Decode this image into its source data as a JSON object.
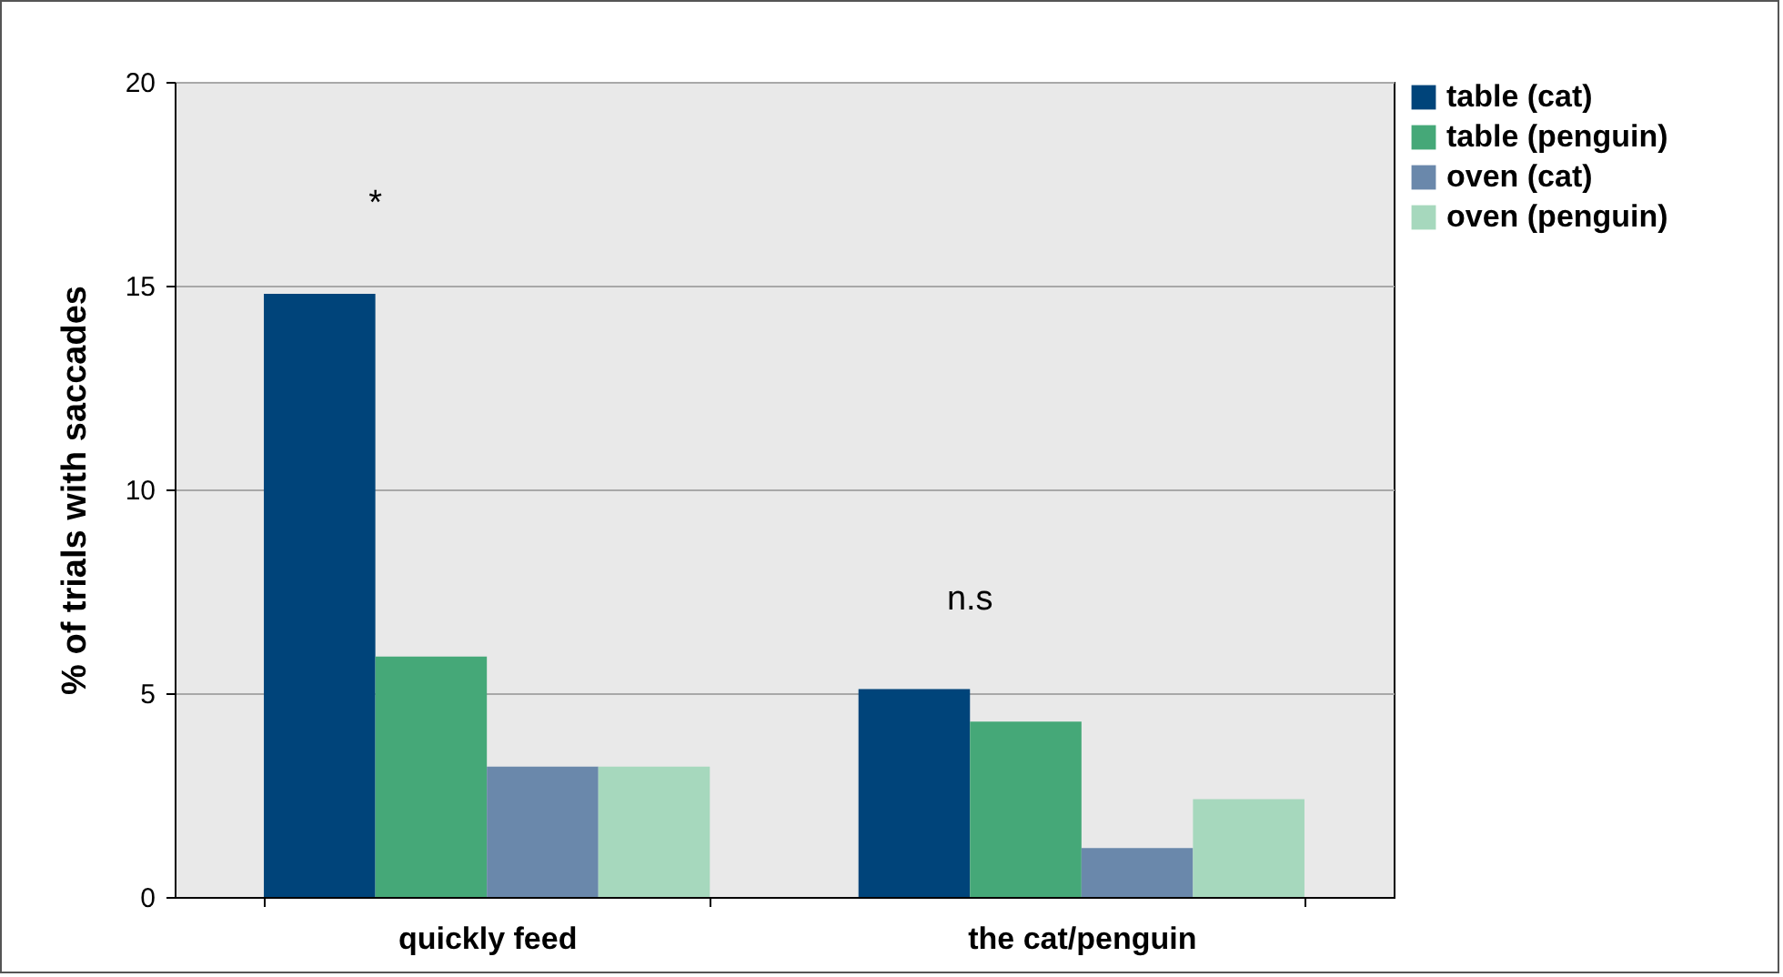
{
  "chart_data": {
    "type": "bar",
    "ylabel": "% of trials with saccades",
    "categories": [
      "quickly feed",
      "the cat/penguin"
    ],
    "series": [
      {
        "name": "table (cat)",
        "color": "#00447a",
        "values": [
          14.8,
          5.1
        ]
      },
      {
        "name": "table (penguin)",
        "color": "#45a878",
        "values": [
          5.9,
          4.3
        ]
      },
      {
        "name": "oven (cat)",
        "color": "#6a88ab",
        "values": [
          3.2,
          1.2
        ]
      },
      {
        "name": "oven (penguin)",
        "color": "#a6d8bd",
        "values": [
          3.2,
          2.4
        ]
      }
    ],
    "ylim": [
      0,
      20
    ],
    "yticks": [
      0,
      5,
      10,
      15,
      20
    ],
    "grid": "y",
    "legend": "right",
    "annotations": [
      "*",
      "n.s"
    ]
  }
}
